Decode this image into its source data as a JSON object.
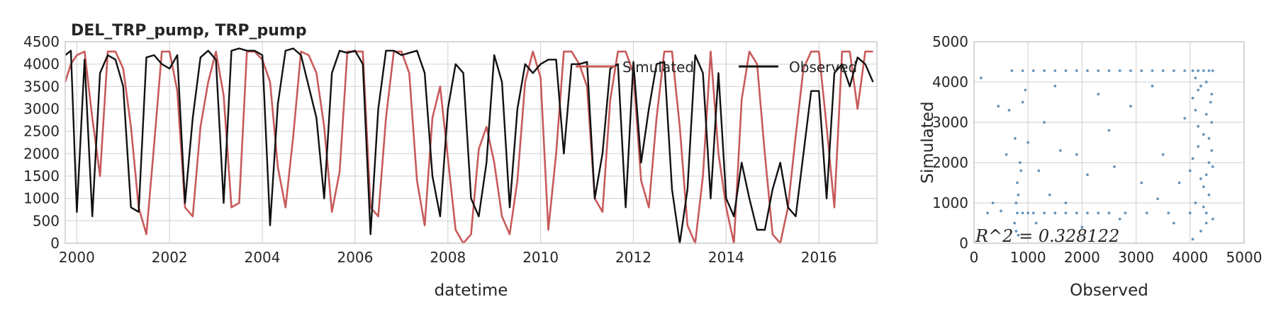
{
  "colors": {
    "simulated": "#c85a5a",
    "observed": "#111111",
    "scatter": "#4682b4",
    "grid": "#d6d6d6",
    "frame": "#cccccc"
  },
  "chart_data": [
    {
      "type": "line",
      "title": "DEL_TRP_pump, TRP_pump",
      "xlabel": "datetime",
      "ylabel": "",
      "xlim": [
        "1999-10-01",
        "2017-04-01"
      ],
      "ylim": [
        0,
        4500
      ],
      "xticks": [
        "2000",
        "2002",
        "2004",
        "2006",
        "2008",
        "2010",
        "2012",
        "2014",
        "2016"
      ],
      "yticks": [
        "0",
        "500",
        "1000",
        "1500",
        "2000",
        "2500",
        "3000",
        "3500",
        "4000",
        "4500"
      ],
      "grid": true,
      "legend": "top-right",
      "series": [
        {
          "name": "Simulated",
          "color": "#c85a5a",
          "x": [
            "1999-10-01",
            "1999-11-15",
            "2000-01-01",
            "2000-03-01",
            "2000-05-01",
            "2000-07-01",
            "2000-09-01",
            "2000-11-01",
            "2001-01-01",
            "2001-03-01",
            "2001-05-01",
            "2001-07-01",
            "2001-09-01",
            "2001-11-01",
            "2002-01-01",
            "2002-03-01",
            "2002-05-01",
            "2002-07-01",
            "2002-09-01",
            "2002-11-01",
            "2003-01-01",
            "2003-03-01",
            "2003-05-01",
            "2003-07-01",
            "2003-09-01",
            "2003-11-01",
            "2004-01-01",
            "2004-03-01",
            "2004-05-01",
            "2004-07-01",
            "2004-09-01",
            "2004-11-01",
            "2005-01-01",
            "2005-03-01",
            "2005-05-01",
            "2005-07-01",
            "2005-09-01",
            "2005-11-01",
            "2006-01-01",
            "2006-03-01",
            "2006-05-01",
            "2006-07-01",
            "2006-09-01",
            "2006-11-01",
            "2007-01-01",
            "2007-03-01",
            "2007-05-01",
            "2007-07-01",
            "2007-09-01",
            "2007-11-01",
            "2008-01-01",
            "2008-03-01",
            "2008-05-01",
            "2008-07-01",
            "2008-09-01",
            "2008-11-01",
            "2009-01-01",
            "2009-03-01",
            "2009-05-01",
            "2009-07-01",
            "2009-09-01",
            "2009-11-01",
            "2010-01-01",
            "2010-03-01",
            "2010-05-01",
            "2010-07-01",
            "2010-09-01",
            "2010-11-01",
            "2011-01-01",
            "2011-03-01",
            "2011-05-01",
            "2011-07-01",
            "2011-09-01",
            "2011-11-01",
            "2012-01-01",
            "2012-03-01",
            "2012-05-01",
            "2012-07-01",
            "2012-09-01",
            "2012-11-01",
            "2013-01-01",
            "2013-03-01",
            "2013-05-01",
            "2013-07-01",
            "2013-09-01",
            "2013-11-01",
            "2014-01-01",
            "2014-03-01",
            "2014-05-01",
            "2014-07-01",
            "2014-09-01",
            "2014-11-01",
            "2015-01-01",
            "2015-03-01",
            "2015-05-01",
            "2015-07-01",
            "2015-09-01",
            "2015-11-01",
            "2016-01-01",
            "2016-03-01",
            "2016-05-01",
            "2016-07-01",
            "2016-09-01",
            "2016-11-01",
            "2017-01-01",
            "2017-03-01"
          ],
          "values": [
            3600,
            4000,
            4200,
            4280,
            2800,
            1500,
            4280,
            4280,
            3900,
            2600,
            800,
            200,
            2200,
            4280,
            4280,
            3400,
            800,
            600,
            2600,
            3600,
            4280,
            3300,
            800,
            900,
            4280,
            4280,
            4100,
            3600,
            1700,
            800,
            2400,
            4280,
            4200,
            3800,
            2600,
            700,
            1600,
            4280,
            4280,
            4280,
            800,
            600,
            2800,
            4280,
            4280,
            3800,
            1400,
            400,
            2800,
            3500,
            1900,
            300,
            0,
            200,
            2100,
            2600,
            1800,
            600,
            200,
            1400,
            3600,
            4280,
            3700,
            300,
            2000,
            4280,
            4280,
            4000,
            3500,
            1000,
            700,
            3200,
            4280,
            4280,
            3800,
            1400,
            800,
            2800,
            4280,
            4280,
            2600,
            400,
            0,
            1500,
            4280,
            2000,
            800,
            0,
            3200,
            4280,
            4000,
            2000,
            200,
            0,
            800,
            2400,
            3900,
            4280,
            4280,
            2600,
            800,
            4280,
            4280,
            3000,
            4280,
            4280
          ]
        },
        {
          "name": "Observed",
          "color": "#111111",
          "x": [
            "1999-10-01",
            "1999-11-15",
            "2000-01-01",
            "2000-03-01",
            "2000-05-01",
            "2000-07-01",
            "2000-09-01",
            "2000-11-01",
            "2001-01-01",
            "2001-03-01",
            "2001-05-01",
            "2001-07-01",
            "2001-09-01",
            "2001-11-01",
            "2002-01-01",
            "2002-03-01",
            "2002-05-01",
            "2002-07-01",
            "2002-09-01",
            "2002-11-01",
            "2003-01-01",
            "2003-03-01",
            "2003-05-01",
            "2003-07-01",
            "2003-09-01",
            "2003-11-01",
            "2004-01-01",
            "2004-03-01",
            "2004-05-01",
            "2004-07-01",
            "2004-09-01",
            "2004-11-01",
            "2005-01-01",
            "2005-03-01",
            "2005-05-01",
            "2005-07-01",
            "2005-09-01",
            "2005-11-01",
            "2006-01-01",
            "2006-03-01",
            "2006-05-01",
            "2006-07-01",
            "2006-09-01",
            "2006-11-01",
            "2007-01-01",
            "2007-03-01",
            "2007-05-01",
            "2007-07-01",
            "2007-09-01",
            "2007-11-01",
            "2008-01-01",
            "2008-03-01",
            "2008-05-01",
            "2008-07-01",
            "2008-09-01",
            "2008-11-01",
            "2009-01-01",
            "2009-03-01",
            "2009-05-01",
            "2009-07-01",
            "2009-09-01",
            "2009-11-01",
            "2010-01-01",
            "2010-03-01",
            "2010-05-01",
            "2010-07-01",
            "2010-09-01",
            "2010-11-01",
            "2011-01-01",
            "2011-03-01",
            "2011-05-01",
            "2011-07-01",
            "2011-09-01",
            "2011-11-01",
            "2012-01-01",
            "2012-03-01",
            "2012-05-01",
            "2012-07-01",
            "2012-09-01",
            "2012-11-01",
            "2013-01-01",
            "2013-03-01",
            "2013-05-01",
            "2013-07-01",
            "2013-09-01",
            "2013-11-01",
            "2014-01-01",
            "2014-03-01",
            "2014-05-01",
            "2014-07-01",
            "2014-09-01",
            "2014-11-01",
            "2015-01-01",
            "2015-03-01",
            "2015-05-01",
            "2015-07-01",
            "2015-09-01",
            "2015-11-01",
            "2016-01-01",
            "2016-03-01",
            "2016-05-01",
            "2016-07-01",
            "2016-09-01",
            "2016-11-01",
            "2017-01-01",
            "2017-03-01"
          ],
          "values": [
            4200,
            4300,
            700,
            4100,
            600,
            3800,
            4200,
            4100,
            3500,
            800,
            700,
            4150,
            4200,
            4000,
            3900,
            4200,
            900,
            2800,
            4150,
            4300,
            4100,
            900,
            4300,
            4350,
            4300,
            4300,
            4200,
            400,
            3100,
            4300,
            4350,
            4200,
            3500,
            2800,
            1000,
            3800,
            4300,
            4250,
            4300,
            4000,
            200,
            3000,
            4300,
            4300,
            4200,
            4250,
            4300,
            3800,
            1500,
            600,
            3000,
            4000,
            3800,
            1000,
            600,
            1800,
            4200,
            3600,
            800,
            3000,
            4000,
            3800,
            4000,
            4100,
            4100,
            2000,
            4000,
            4000,
            4050,
            1000,
            2000,
            3900,
            4000,
            800,
            4050,
            1800,
            3000,
            4000,
            4050,
            1200,
            0,
            1200,
            4200,
            3800,
            1000,
            3800,
            1000,
            600,
            1800,
            1000,
            300,
            300,
            1200,
            1800,
            800,
            600,
            2000,
            3400,
            3400,
            1000,
            3800,
            4000,
            3500,
            4150,
            4000,
            3600
          ]
        }
      ]
    },
    {
      "type": "scatter",
      "xlabel": "Observed",
      "ylabel": "Simulated",
      "xlim": [
        0,
        5000
      ],
      "ylim": [
        0,
        5000
      ],
      "xticks": [
        "0",
        "1000",
        "2000",
        "3000",
        "4000",
        "5000"
      ],
      "yticks": [
        "0",
        "1000",
        "2000",
        "3000",
        "4000",
        "5000"
      ],
      "grid": true,
      "color": "#4682b4",
      "annotation": "R^2 = 0.328122",
      "points": [
        [
          130,
          4100
        ],
        [
          700,
          4280
        ],
        [
          900,
          4280
        ],
        [
          1100,
          4280
        ],
        [
          1300,
          4280
        ],
        [
          1500,
          4280
        ],
        [
          1700,
          4280
        ],
        [
          1900,
          4280
        ],
        [
          2100,
          4280
        ],
        [
          2300,
          4280
        ],
        [
          2500,
          4280
        ],
        [
          2700,
          4280
        ],
        [
          2900,
          4280
        ],
        [
          3100,
          4280
        ],
        [
          3300,
          4280
        ],
        [
          3500,
          4280
        ],
        [
          3700,
          4280
        ],
        [
          3900,
          4280
        ],
        [
          4050,
          4280
        ],
        [
          4150,
          4280
        ],
        [
          4250,
          4280
        ],
        [
          4350,
          4280
        ],
        [
          4420,
          4280
        ],
        [
          800,
          750
        ],
        [
          900,
          750
        ],
        [
          1000,
          750
        ],
        [
          1100,
          750
        ],
        [
          1300,
          750
        ],
        [
          1500,
          750
        ],
        [
          1700,
          750
        ],
        [
          1900,
          750
        ],
        [
          2100,
          750
        ],
        [
          2300,
          750
        ],
        [
          2500,
          750
        ],
        [
          2800,
          750
        ],
        [
          3200,
          750
        ],
        [
          3600,
          750
        ],
        [
          4000,
          750
        ],
        [
          4300,
          750
        ],
        [
          750,
          500
        ],
        [
          780,
          1000
        ],
        [
          800,
          1500
        ],
        [
          850,
          2000
        ],
        [
          780,
          300
        ],
        [
          820,
          1200
        ],
        [
          870,
          1800
        ],
        [
          900,
          3500
        ],
        [
          760,
          2600
        ],
        [
          820,
          200
        ],
        [
          950,
          3800
        ],
        [
          1000,
          2500
        ],
        [
          1200,
          1800
        ],
        [
          1300,
          3000
        ],
        [
          1400,
          1200
        ],
        [
          1500,
          3900
        ],
        [
          1700,
          1000
        ],
        [
          1900,
          2200
        ],
        [
          2000,
          400
        ],
        [
          2100,
          1700
        ],
        [
          2300,
          3700
        ],
        [
          2500,
          2800
        ],
        [
          2700,
          600
        ],
        [
          2900,
          3400
        ],
        [
          3100,
          1500
        ],
        [
          3300,
          3900
        ],
        [
          3500,
          2200
        ],
        [
          3700,
          500
        ],
        [
          3900,
          3100
        ],
        [
          4000,
          1800
        ],
        [
          4050,
          3600
        ],
        [
          4100,
          1000
        ],
        [
          4150,
          2400
        ],
        [
          4200,
          3900
        ],
        [
          4250,
          1400
        ],
        [
          4300,
          3200
        ],
        [
          4350,
          2000
        ],
        [
          4400,
          3700
        ],
        [
          4420,
          600
        ],
        [
          4050,
          100
        ],
        [
          4150,
          2900
        ],
        [
          4250,
          2700
        ],
        [
          4300,
          4000
        ],
        [
          4350,
          1200
        ],
        [
          4400,
          2300
        ],
        [
          4100,
          3300
        ],
        [
          4200,
          1600
        ],
        [
          4300,
          500
        ],
        [
          4380,
          3500
        ],
        [
          4050,
          2100
        ],
        [
          4150,
          3800
        ],
        [
          4250,
          900
        ],
        [
          4350,
          2600
        ],
        [
          4420,
          1900
        ],
        [
          4100,
          4100
        ],
        [
          4200,
          300
        ],
        [
          4300,
          1700
        ],
        [
          4400,
          3000
        ],
        [
          250,
          750
        ],
        [
          500,
          800
        ],
        [
          600,
          2200
        ],
        [
          3800,
          1500
        ],
        [
          3400,
          1100
        ],
        [
          2600,
          1900
        ],
        [
          1600,
          2300
        ],
        [
          1150,
          500
        ],
        [
          350,
          1000
        ],
        [
          450,
          3400
        ],
        [
          650,
          3300
        ]
      ]
    }
  ]
}
